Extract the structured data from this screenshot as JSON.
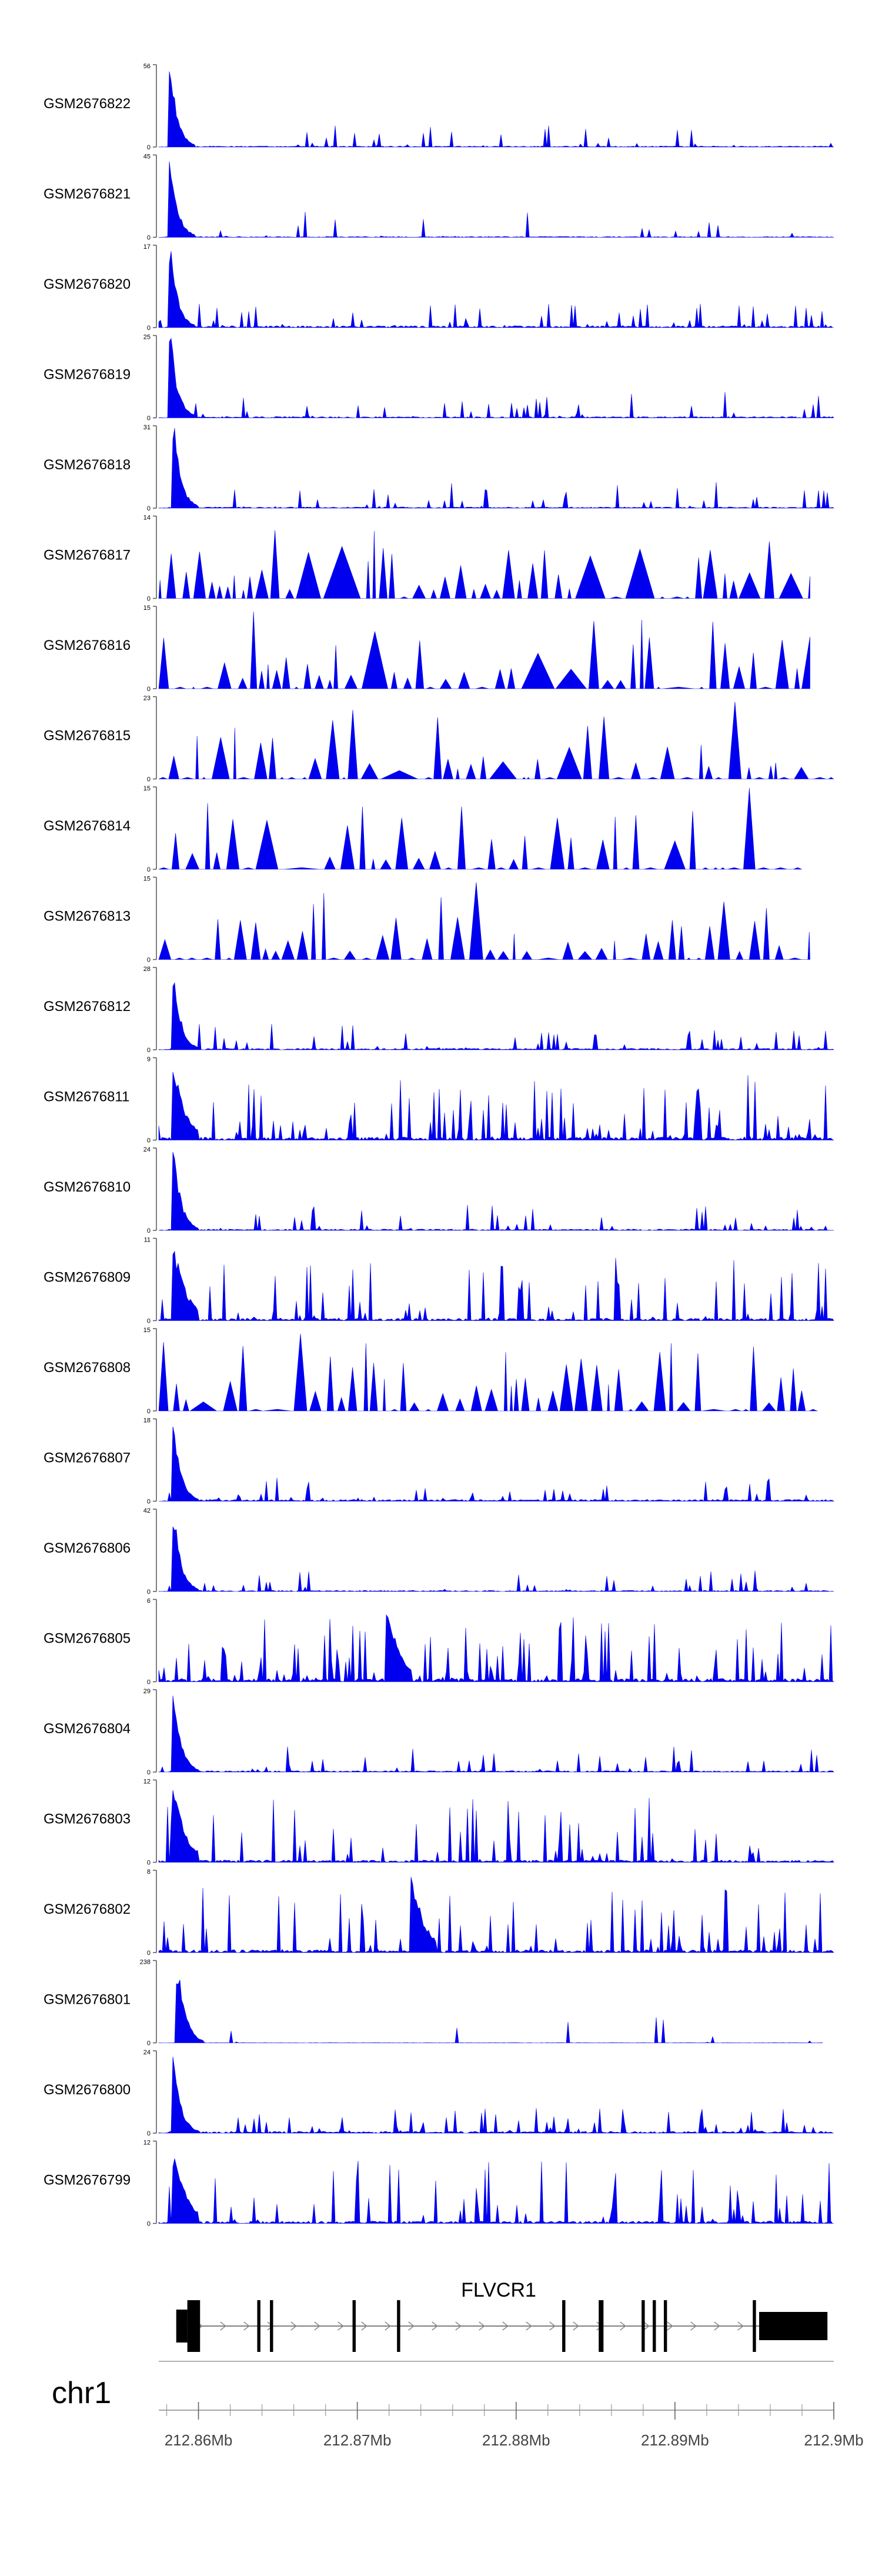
{
  "chart_data": {
    "type": "area",
    "title": "",
    "colors": {
      "signal": "#0000ee",
      "axis": "#555555",
      "gene": "#000000",
      "text": "#000000"
    },
    "region": {
      "start_mb": 212.8575,
      "end_mb": 212.9
    },
    "tracks": [
      {
        "name": "GSM2676822",
        "max_label": "56",
        "min_label": "0",
        "ylim": [
          0,
          56
        ],
        "mode": "spiky",
        "peak_x": 212.8583,
        "peak_h": 1.0,
        "density": 0.3,
        "fill_end_mb": 212.9,
        "seed": 11
      },
      {
        "name": "GSM2676821",
        "max_label": "45",
        "min_label": "0",
        "ylim": [
          0,
          45
        ],
        "mode": "spiky",
        "peak_x": 212.8583,
        "peak_h": 0.95,
        "density": 0.25,
        "fill_end_mb": 212.9,
        "seed": 23
      },
      {
        "name": "GSM2676820",
        "max_label": "17",
        "min_label": "0",
        "ylim": [
          0,
          17
        ],
        "mode": "spiky",
        "peak_x": 212.8583,
        "peak_h": 0.95,
        "density": 0.55,
        "fill_end_mb": 212.9,
        "seed": 37
      },
      {
        "name": "GSM2676819",
        "max_label": "25",
        "min_label": "0",
        "ylim": [
          0,
          25
        ],
        "mode": "spiky",
        "peak_x": 212.8583,
        "peak_h": 1.0,
        "density": 0.4,
        "fill_end_mb": 212.9,
        "seed": 41
      },
      {
        "name": "GSM2676818",
        "max_label": "31",
        "min_label": "0",
        "ylim": [
          0,
          31
        ],
        "mode": "spiky",
        "peak_x": 212.8585,
        "peak_h": 1.0,
        "density": 0.35,
        "fill_end_mb": 212.9,
        "seed": 53
      },
      {
        "name": "GSM2676817",
        "max_label": "14",
        "min_label": "0",
        "ylim": [
          0,
          14
        ],
        "mode": "tri",
        "peak_x": 212.8583,
        "peak_h": 0.55,
        "density": 0.85,
        "fill_end_mb": 212.8985,
        "seed": 67
      },
      {
        "name": "GSM2676816",
        "max_label": "15",
        "min_label": "0",
        "ylim": [
          0,
          15
        ],
        "mode": "tri",
        "peak_x": 212.863,
        "peak_h": 0.95,
        "density": 0.65,
        "fill_end_mb": 212.8985,
        "seed": 71
      },
      {
        "name": "GSM2676815",
        "max_label": "23",
        "min_label": "0",
        "ylim": [
          0,
          23
        ],
        "mode": "tri",
        "peak_x": 212.8935,
        "peak_h": 0.95,
        "density": 0.7,
        "fill_end_mb": 212.9,
        "seed": 83
      },
      {
        "name": "GSM2676814",
        "max_label": "15",
        "min_label": "0",
        "ylim": [
          0,
          15
        ],
        "mode": "tri",
        "peak_x": 212.8942,
        "peak_h": 1.0,
        "density": 0.6,
        "fill_end_mb": 212.898,
        "seed": 97
      },
      {
        "name": "GSM2676813",
        "max_label": "15",
        "min_label": "0",
        "ylim": [
          0,
          15
        ],
        "mode": "tri",
        "peak_x": 212.8768,
        "peak_h": 0.95,
        "density": 0.75,
        "fill_end_mb": 212.8985,
        "seed": 101
      },
      {
        "name": "GSM2676812",
        "max_label": "28",
        "min_label": "0",
        "ylim": [
          0,
          28
        ],
        "mode": "spiky",
        "peak_x": 212.8585,
        "peak_h": 0.95,
        "density": 0.45,
        "fill_end_mb": 212.9,
        "seed": 113
      },
      {
        "name": "GSM2676811",
        "max_label": "9",
        "min_label": "0",
        "ylim": [
          0,
          9
        ],
        "mode": "dense",
        "peak_x": 212.8585,
        "peak_h": 0.9,
        "density": 0.9,
        "fill_end_mb": 212.9,
        "seed": 127
      },
      {
        "name": "GSM2676810",
        "max_label": "24",
        "min_label": "0",
        "ylim": [
          0,
          24
        ],
        "mode": "spiky",
        "peak_x": 212.8585,
        "peak_h": 1.0,
        "density": 0.4,
        "fill_end_mb": 212.9,
        "seed": 131
      },
      {
        "name": "GSM2676809",
        "max_label": "11",
        "min_label": "0",
        "ylim": [
          0,
          11
        ],
        "mode": "dense",
        "peak_x": 212.8585,
        "peak_h": 0.95,
        "density": 0.75,
        "fill_end_mb": 212.9,
        "seed": 149
      },
      {
        "name": "GSM2676808",
        "max_label": "15",
        "min_label": "0",
        "ylim": [
          0,
          15
        ],
        "mode": "tri",
        "peak_x": 212.8658,
        "peak_h": 0.95,
        "density": 0.75,
        "fill_end_mb": 212.899,
        "seed": 157
      },
      {
        "name": "GSM2676807",
        "max_label": "18",
        "min_label": "0",
        "ylim": [
          0,
          18
        ],
        "mode": "spiky",
        "peak_x": 212.8585,
        "peak_h": 0.95,
        "density": 0.55,
        "fill_end_mb": 212.9,
        "seed": 163
      },
      {
        "name": "GSM2676806",
        "max_label": "42",
        "min_label": "0",
        "ylim": [
          0,
          42
        ],
        "mode": "spiky",
        "peak_x": 212.8585,
        "peak_h": 1.0,
        "density": 0.35,
        "fill_end_mb": 212.9,
        "seed": 173
      },
      {
        "name": "GSM2676805",
        "max_label": "6",
        "min_label": "0",
        "ylim": [
          0,
          6
        ],
        "mode": "dense",
        "peak_x": 212.872,
        "peak_h": 0.95,
        "density": 1.0,
        "fill_end_mb": 212.9,
        "seed": 181
      },
      {
        "name": "GSM2676804",
        "max_label": "29",
        "min_label": "0",
        "ylim": [
          0,
          29
        ],
        "mode": "spiky",
        "peak_x": 212.8585,
        "peak_h": 1.0,
        "density": 0.4,
        "fill_end_mb": 212.9,
        "seed": 191
      },
      {
        "name": "GSM2676803",
        "max_label": "12",
        "min_label": "0",
        "ylim": [
          0,
          12
        ],
        "mode": "dense",
        "peak_x": 212.8585,
        "peak_h": 0.9,
        "density": 0.7,
        "fill_end_mb": 212.9,
        "seed": 197
      },
      {
        "name": "GSM2676802",
        "max_label": "8",
        "min_label": "0",
        "ylim": [
          0,
          8
        ],
        "mode": "dense",
        "peak_x": 212.8735,
        "peak_h": 0.95,
        "density": 0.85,
        "fill_end_mb": 212.9,
        "seed": 211
      },
      {
        "name": "GSM2676801",
        "max_label": "238",
        "min_label": "0",
        "ylim": [
          0,
          238
        ],
        "mode": "spiky",
        "peak_x": 212.8588,
        "peak_h": 0.95,
        "density": 0.08,
        "fill_end_mb": 212.8993,
        "seed": 223
      },
      {
        "name": "GSM2676800",
        "max_label": "24",
        "min_label": "0",
        "ylim": [
          0,
          24
        ],
        "mode": "spiky",
        "peak_x": 212.8585,
        "peak_h": 0.95,
        "density": 0.55,
        "fill_end_mb": 212.9,
        "seed": 229
      },
      {
        "name": "GSM2676799",
        "max_label": "12",
        "min_label": "0",
        "ylim": [
          0,
          12
        ],
        "mode": "dense",
        "peak_x": 212.8585,
        "peak_h": 0.9,
        "density": 0.7,
        "fill_end_mb": 212.9,
        "seed": 233
      }
    ],
    "gene": {
      "name": "FLVCR1",
      "strand": "+",
      "start_mb": 212.8586,
      "end_mb": 212.8996,
      "exons": [
        {
          "start_mb": 212.8586,
          "end_mb": 212.8593,
          "kind": "utr"
        },
        {
          "start_mb": 212.8593,
          "end_mb": 212.8601,
          "kind": "cds"
        },
        {
          "start_mb": 212.8637,
          "end_mb": 212.8639,
          "kind": "cds"
        },
        {
          "start_mb": 212.8645,
          "end_mb": 212.8647,
          "kind": "cds"
        },
        {
          "start_mb": 212.8697,
          "end_mb": 212.8699,
          "kind": "cds"
        },
        {
          "start_mb": 212.8725,
          "end_mb": 212.8727,
          "kind": "cds"
        },
        {
          "start_mb": 212.8829,
          "end_mb": 212.8831,
          "kind": "cds"
        },
        {
          "start_mb": 212.8852,
          "end_mb": 212.8855,
          "kind": "cds"
        },
        {
          "start_mb": 212.8879,
          "end_mb": 212.8881,
          "kind": "cds"
        },
        {
          "start_mb": 212.8886,
          "end_mb": 212.8888,
          "kind": "cds"
        },
        {
          "start_mb": 212.8893,
          "end_mb": 212.8895,
          "kind": "cds"
        },
        {
          "start_mb": 212.8949,
          "end_mb": 212.8951,
          "kind": "cds"
        },
        {
          "start_mb": 212.8953,
          "end_mb": 212.8996,
          "kind": "utr3"
        }
      ]
    },
    "chromosome": "chr1",
    "x_axis": {
      "major_ticks": [
        212.86,
        212.87,
        212.88,
        212.89,
        212.9
      ],
      "tick_labels": [
        "212.86Mb",
        "212.87Mb",
        "212.88Mb",
        "212.89Mb",
        "212.9Mb"
      ],
      "minor_step": 0.002
    }
  }
}
